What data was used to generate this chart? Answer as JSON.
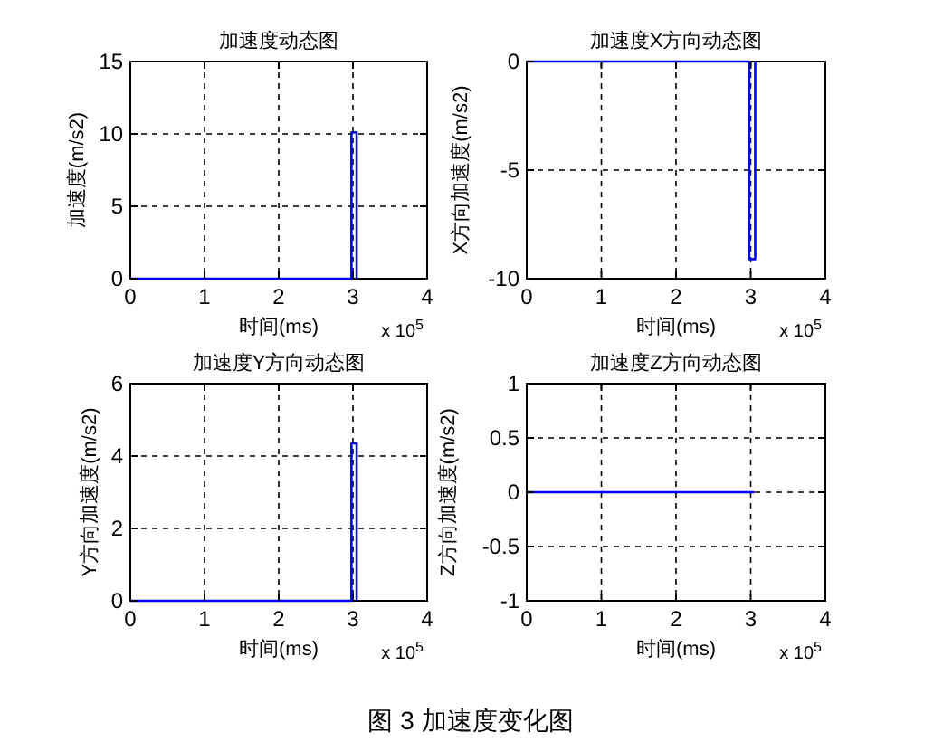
{
  "chart_data": [
    {
      "type": "line",
      "title": "加速度动态图",
      "xlabel": "时间(ms)",
      "ylabel": "加速度(m/s2)",
      "annotations": [
        "x 10$^{5}$"
      ],
      "series": [
        {
          "color": "#0000ff",
          "x": [
            0,
            2.98,
            2.98,
            3.05,
            3.05
          ],
          "values": [
            0,
            0,
            10.1,
            10.1,
            0
          ]
        }
      ],
      "xlim": [
        0,
        4
      ],
      "xticks": [
        0,
        1,
        2,
        3,
        4
      ],
      "ylim": [
        0,
        15
      ],
      "yticks": [
        0,
        5,
        10,
        15
      ],
      "grid": true
    },
    {
      "type": "line",
      "title": "加速度X方向动态图",
      "xlabel": "时间(ms)",
      "ylabel": "X方向加速度(m/s2)",
      "annotations": [
        "x 10$^{5}$"
      ],
      "series": [
        {
          "color": "#0000ff",
          "x": [
            0,
            2.98,
            2.98,
            3.06,
            3.06
          ],
          "values": [
            0,
            0,
            -9.1,
            -9.1,
            0
          ]
        }
      ],
      "xlim": [
        0,
        4
      ],
      "xticks": [
        0,
        1,
        2,
        3,
        4
      ],
      "ylim": [
        -10,
        0
      ],
      "yticks": [
        -10,
        -5,
        0
      ],
      "grid": true
    },
    {
      "type": "line",
      "title": "加速度Y方向动态图",
      "xlabel": "时间(ms)",
      "ylabel": "Y方向加速度(m/s2)",
      "annotations": [
        "x 10$^{5}$"
      ],
      "series": [
        {
          "color": "#0000ff",
          "x": [
            0,
            2.98,
            2.98,
            3.05,
            3.05
          ],
          "values": [
            0,
            0,
            4.35,
            4.35,
            0
          ]
        }
      ],
      "xlim": [
        0,
        4
      ],
      "xticks": [
        0,
        1,
        2,
        3,
        4
      ],
      "ylim": [
        0,
        6
      ],
      "yticks": [
        0,
        2,
        4,
        6
      ],
      "grid": true
    },
    {
      "type": "line",
      "title": "加速度Z方向动态图",
      "xlabel": "时间(ms)",
      "ylabel": "Z方向加速度(m/s2)",
      "annotations": [
        "x 10$^{5}$",
        "图 3 加速度变化图"
      ],
      "series": [
        {
          "color": "#0000ff",
          "x": [
            0,
            3.05
          ],
          "values": [
            0,
            0
          ]
        }
      ],
      "xlim": [
        0,
        4
      ],
      "xticks": [
        0,
        1,
        2,
        3,
        4
      ],
      "ylim": [
        -1,
        1
      ],
      "yticks": [
        -1,
        -0.5,
        0,
        0.5,
        1
      ],
      "grid": true
    }
  ]
}
